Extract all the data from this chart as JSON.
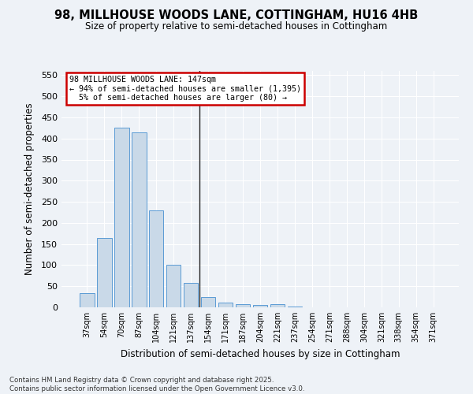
{
  "title": "98, MILLHOUSE WOODS LANE, COTTINGHAM, HU16 4HB",
  "subtitle": "Size of property relative to semi-detached houses in Cottingham",
  "xlabel": "Distribution of semi-detached houses by size in Cottingham",
  "ylabel": "Number of semi-detached properties",
  "categories": [
    "37sqm",
    "54sqm",
    "70sqm",
    "87sqm",
    "104sqm",
    "121sqm",
    "137sqm",
    "154sqm",
    "171sqm",
    "187sqm",
    "204sqm",
    "221sqm",
    "237sqm",
    "254sqm",
    "271sqm",
    "288sqm",
    "304sqm",
    "321sqm",
    "338sqm",
    "354sqm",
    "371sqm"
  ],
  "values": [
    33,
    165,
    425,
    415,
    230,
    101,
    57,
    25,
    12,
    8,
    5,
    8,
    1,
    0,
    0,
    0,
    0,
    0,
    0,
    0,
    0
  ],
  "bar_color": "#c9d9e8",
  "bar_edge_color": "#5b9bd5",
  "subject_line_index": 7,
  "subject_line_label": "98 MILLHOUSE WOODS LANE: 147sqm",
  "pct_smaller": "94% of semi-detached houses are smaller (1,395)",
  "pct_larger": "5% of semi-detached houses are larger (80)",
  "annotation_box_color": "#cc0000",
  "ylim": [
    0,
    560
  ],
  "yticks": [
    0,
    50,
    100,
    150,
    200,
    250,
    300,
    350,
    400,
    450,
    500,
    550
  ],
  "background_color": "#eef2f7",
  "grid_color": "#ffffff",
  "footer_line1": "Contains HM Land Registry data © Crown copyright and database right 2025.",
  "footer_line2": "Contains public sector information licensed under the Open Government Licence v3.0."
}
